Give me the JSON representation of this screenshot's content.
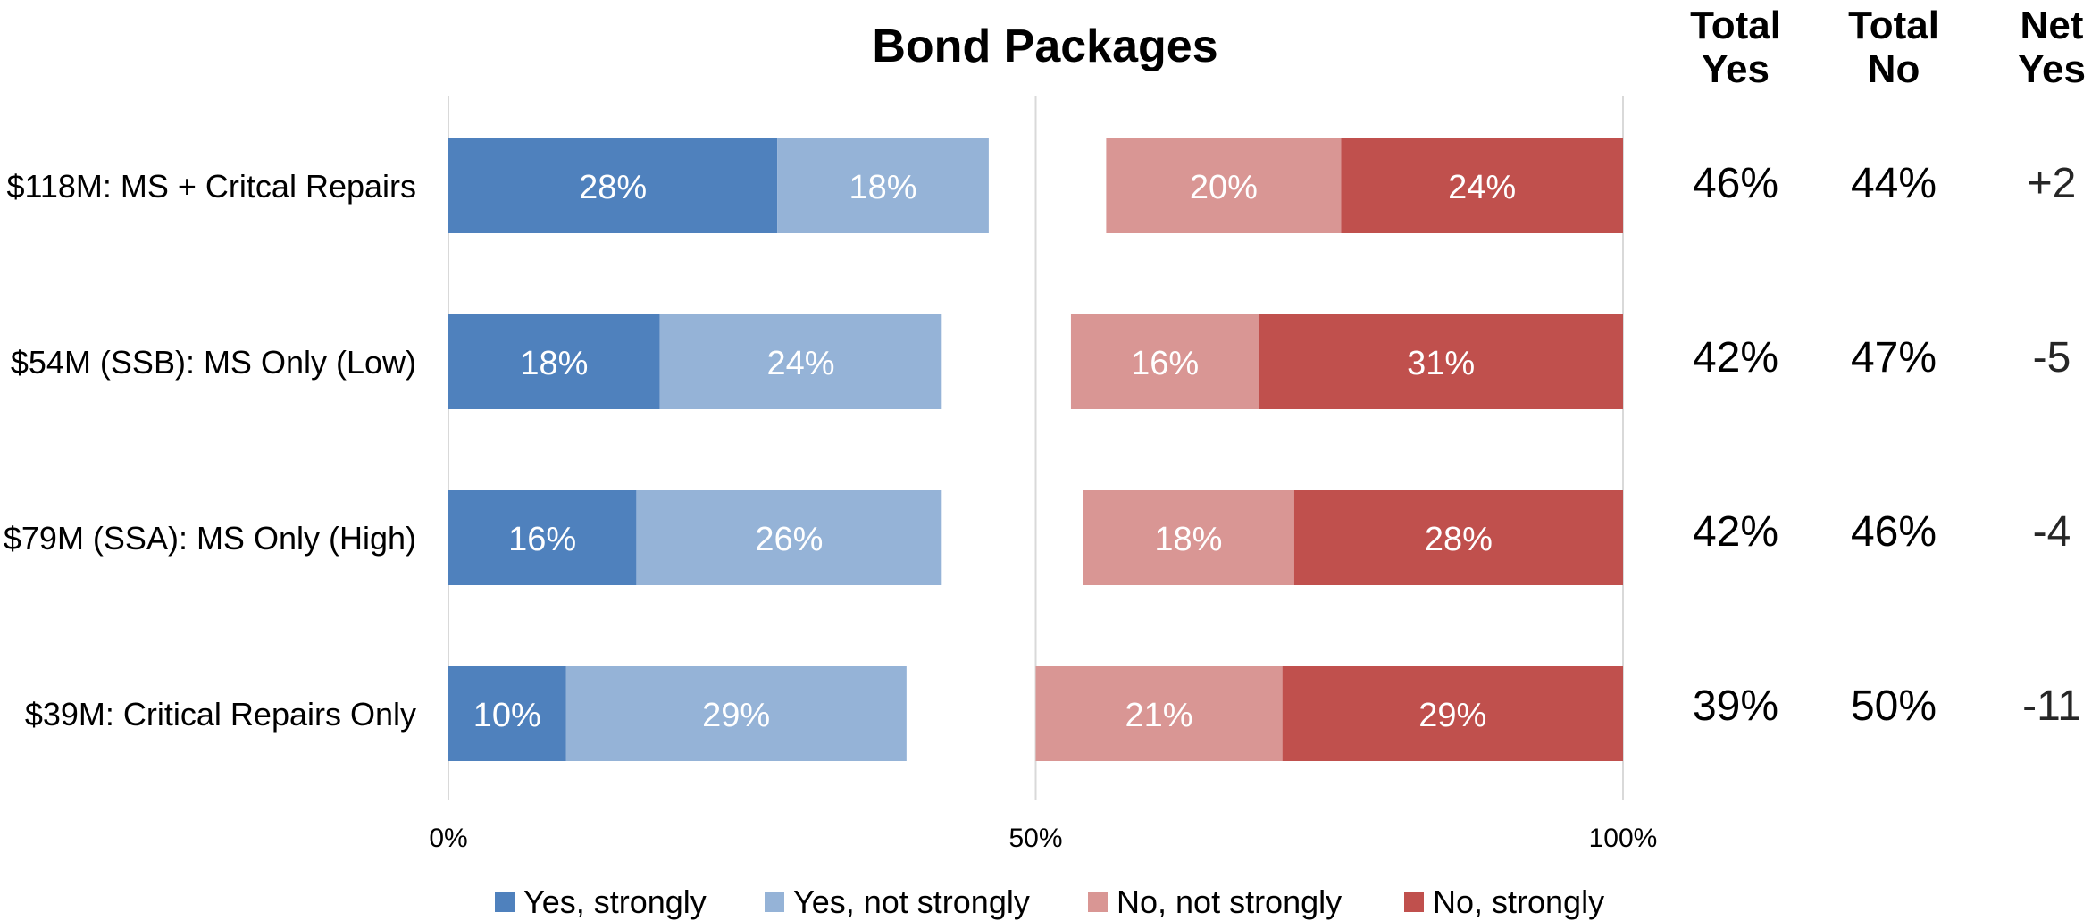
{
  "chart_data": {
    "type": "bar",
    "orientation": "horizontal",
    "stacked": true,
    "title": "Bond Packages",
    "categories": [
      "$118M: MS + Critcal Repairs",
      "$54M (SSB): MS Only (Low)",
      "$79M (SSA): MS Only (High)",
      "$39M: Critical Repairs Only"
    ],
    "series": [
      {
        "name": "Yes, strongly",
        "color": "#4f81bd",
        "values": [
          28,
          18,
          16,
          10
        ],
        "labels": [
          "28%",
          "18%",
          "16%",
          "10%"
        ]
      },
      {
        "name": "Yes, not strongly",
        "color": "#95b3d7",
        "values": [
          18,
          24,
          26,
          29
        ],
        "labels": [
          "18%",
          "24%",
          "26%",
          "29%"
        ]
      },
      {
        "name": "No, not strongly",
        "color": "#d99694",
        "values": [
          20,
          16,
          18,
          21
        ],
        "labels": [
          "20%",
          "16%",
          "18%",
          "21%"
        ]
      },
      {
        "name": "No, strongly",
        "color": "#c0504d",
        "values": [
          24,
          31,
          28,
          29
        ],
        "labels": [
          "24%",
          "31%",
          "28%",
          "29%"
        ]
      }
    ],
    "xlim": [
      0,
      100
    ],
    "x_ticks": [
      "0%",
      "50%",
      "100%"
    ],
    "no_segments_right_aligned_to": 100,
    "grid": "vertical at 0%, 50%, 100%",
    "legend_position": "bottom"
  },
  "table": {
    "headers": {
      "total_yes": [
        "Total",
        "Yes"
      ],
      "total_no": [
        "Total",
        "No"
      ],
      "net_yes": [
        "Net",
        "Yes"
      ]
    },
    "rows": [
      {
        "total_yes": "46%",
        "total_no": "44%",
        "net_yes": "+2"
      },
      {
        "total_yes": "42%",
        "total_no": "47%",
        "net_yes": "-5"
      },
      {
        "total_yes": "42%",
        "total_no": "46%",
        "net_yes": "-4"
      },
      {
        "total_yes": "39%",
        "total_no": "50%",
        "net_yes": "-11"
      }
    ]
  }
}
